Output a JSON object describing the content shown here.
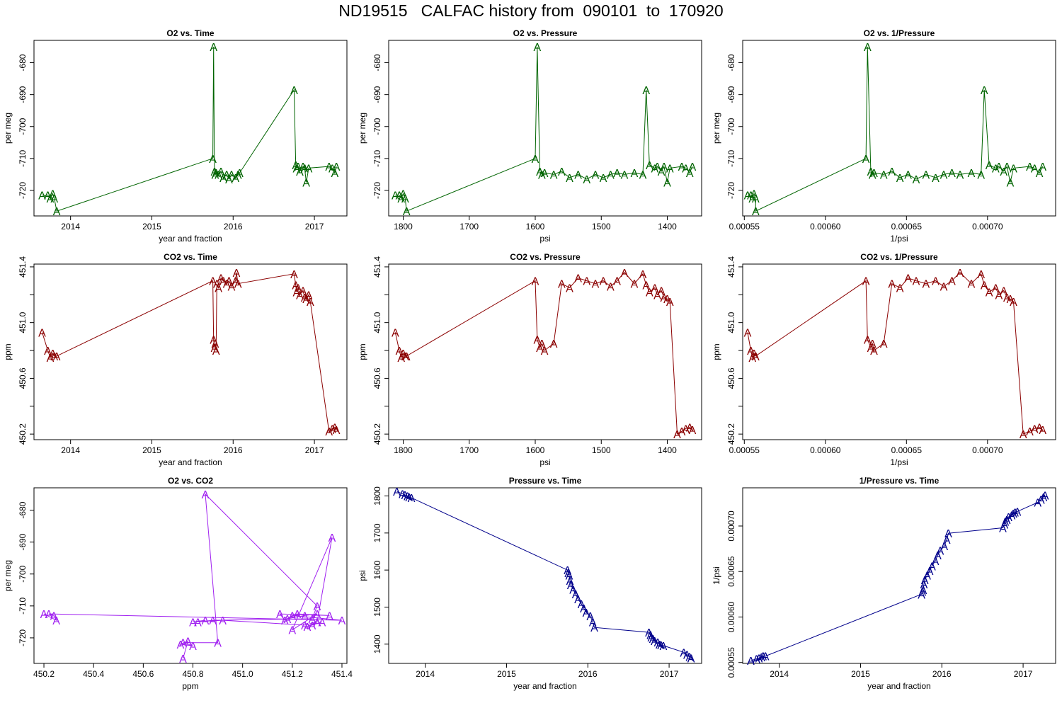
{
  "page": {
    "title": "ND19515   CALFAC history from  090101  to  170920"
  },
  "colors": {
    "o2": "#006400",
    "co2": "#8b0000",
    "o2co2": "#a020f0",
    "pressure": "#00008b"
  },
  "marker": "A",
  "chart_data": [
    {
      "type": "line",
      "title": "O2 vs. Time",
      "xlabel": "year and fraction",
      "ylabel": "per meg",
      "xlim": [
        2013.55,
        2017.4
      ],
      "ylim": [
        -728,
        -673
      ],
      "xreverse": false,
      "color_key": "o2",
      "xticks": [
        2014,
        2015,
        2016,
        2017
      ],
      "xticklabels": [
        "2014",
        "2015",
        "2016",
        "2017"
      ],
      "yticks": [
        -680,
        -690,
        -700,
        -710,
        -720
      ],
      "yticklabels": [
        "-680",
        "-690",
        "-700",
        "-710",
        "-720"
      ],
      "x": [
        2013.65,
        2013.72,
        2013.75,
        2013.78,
        2013.8,
        2013.83,
        2015.75,
        2015.76,
        2015.77,
        2015.78,
        2015.79,
        2015.82,
        2015.85,
        2015.88,
        2015.92,
        2015.95,
        2015.98,
        2016.03,
        2016.06,
        2016.08,
        2016.75,
        2016.77,
        2016.78,
        2016.8,
        2016.82,
        2016.86,
        2016.88,
        2016.9,
        2016.93,
        2017.18,
        2017.22,
        2017.25,
        2017.27
      ],
      "y": [
        -721.5,
        -721.5,
        -722.5,
        -721,
        -722.5,
        -726.5,
        -710,
        -675,
        -714,
        -715,
        -714.5,
        -715,
        -714,
        -716,
        -715,
        -716.5,
        -715,
        -716,
        -715,
        -714.5,
        -688.5,
        -712,
        -713,
        -712.5,
        -714,
        -712.5,
        -713,
        -717.5,
        -713,
        -712.5,
        -713,
        -714.5,
        -712.5
      ]
    },
    {
      "type": "line",
      "title": "O2 vs. Pressure",
      "xlabel": "psi",
      "ylabel": "per meg",
      "xlim": [
        1822,
        1348
      ],
      "ylim": [
        -728,
        -673
      ],
      "xreverse": true,
      "color_key": "o2",
      "xticks": [
        1800,
        1700,
        1600,
        1500,
        1400
      ],
      "xticklabels": [
        "1800",
        "1700",
        "1600",
        "1500",
        "1400"
      ],
      "yticks": [
        -680,
        -690,
        -700,
        -710,
        -720
      ],
      "yticklabels": [
        "-680",
        "-690",
        "-700",
        "-710",
        "-720"
      ],
      "x": [
        1812,
        1806,
        1803,
        1800,
        1797,
        1795,
        1600,
        1597,
        1593,
        1590,
        1586,
        1572,
        1560,
        1548,
        1535,
        1522,
        1509,
        1497,
        1486,
        1476,
        1465,
        1450,
        1437,
        1432,
        1427,
        1419,
        1415,
        1409,
        1405,
        1400,
        1396,
        1378,
        1372,
        1366,
        1362
      ],
      "y": [
        -721.5,
        -721.5,
        -722.5,
        -721,
        -722.5,
        -726.5,
        -710,
        -675,
        -714,
        -715,
        -714.5,
        -715,
        -714,
        -716,
        -715,
        -716.5,
        -715,
        -716,
        -715,
        -714.5,
        -715,
        -714.5,
        -715,
        -688.5,
        -712,
        -713,
        -712.5,
        -714,
        -712.5,
        -717.5,
        -713,
        -712.5,
        -713,
        -714.5,
        -712.5
      ]
    },
    {
      "type": "line",
      "title": "O2 vs. 1/Pressure",
      "xlabel": "1/psi",
      "ylabel": "per meg",
      "xlim": [
        0.000549,
        0.000742
      ],
      "ylim": [
        -728,
        -673
      ],
      "xreverse": false,
      "color_key": "o2",
      "xticks": [
        0.00055,
        0.0006,
        0.00065,
        0.0007
      ],
      "xticklabels": [
        "0.00055",
        "0.00060",
        "0.00065",
        "0.00070"
      ],
      "yticks": [
        -680,
        -690,
        -700,
        -710,
        -720
      ],
      "yticklabels": [
        "-680",
        "-690",
        "-700",
        "-710",
        "-720"
      ],
      "x": [
        0.000552,
        0.000554,
        0.000555,
        0.000556,
        0.000557,
        0.000557,
        0.000625,
        0.000626,
        0.000628,
        0.000629,
        0.00063,
        0.000636,
        0.000641,
        0.000646,
        0.000651,
        0.000656,
        0.000662,
        0.000668,
        0.000673,
        0.000678,
        0.000683,
        0.00069,
        0.000696,
        0.000698,
        0.000701,
        0.000705,
        0.000707,
        0.00071,
        0.000712,
        0.000714,
        0.000716,
        0.000726,
        0.000729,
        0.000732,
        0.000734
      ],
      "y": [
        -721.5,
        -721.5,
        -722.5,
        -721,
        -722.5,
        -726.5,
        -710,
        -675,
        -714,
        -715,
        -714.5,
        -715,
        -714,
        -716,
        -715,
        -716.5,
        -715,
        -716,
        -715,
        -714.5,
        -715,
        -714.5,
        -715,
        -688.5,
        -712,
        -713,
        -712.5,
        -714,
        -712.5,
        -717.5,
        -713,
        -712.5,
        -713,
        -714.5,
        -712.5
      ]
    },
    {
      "type": "line",
      "title": "CO2 vs. Time",
      "xlabel": "year and fraction",
      "ylabel": "ppm",
      "xlim": [
        2013.55,
        2017.4
      ],
      "ylim": [
        450.16,
        451.42
      ],
      "xreverse": false,
      "color_key": "co2",
      "xticks": [
        2014,
        2015,
        2016,
        2017
      ],
      "xticklabels": [
        "2014",
        "2015",
        "2016",
        "2017"
      ],
      "yticks": [
        450.2,
        450.4,
        450.6,
        450.8,
        451.0,
        451.2,
        451.4
      ],
      "yticklabels": [
        "450.2",
        "",
        "450.6",
        "",
        "451.0",
        "",
        "451.4"
      ],
      "x": [
        2013.65,
        2013.72,
        2013.75,
        2013.78,
        2013.8,
        2013.83,
        2015.75,
        2015.76,
        2015.77,
        2015.78,
        2015.79,
        2015.8,
        2015.82,
        2015.85,
        2015.88,
        2015.92,
        2015.95,
        2015.98,
        2016.03,
        2016.04,
        2016.06,
        2016.75,
        2016.77,
        2016.78,
        2016.8,
        2016.82,
        2016.86,
        2016.88,
        2016.9,
        2016.93,
        2016.95,
        2017.18,
        2017.22,
        2017.25,
        2017.27
      ],
      "y": [
        450.93,
        450.8,
        450.75,
        450.78,
        450.76,
        450.76,
        451.3,
        450.88,
        450.82,
        450.85,
        450.8,
        451.28,
        451.25,
        451.32,
        451.3,
        451.28,
        451.3,
        451.26,
        451.3,
        451.36,
        451.28,
        451.35,
        451.27,
        451.22,
        451.25,
        451.2,
        451.23,
        451.18,
        451.17,
        451.2,
        451.15,
        450.22,
        450.24,
        450.25,
        450.23
      ]
    },
    {
      "type": "line",
      "title": "CO2 vs. Pressure",
      "xlabel": "psi",
      "ylabel": "ppm",
      "xlim": [
        1822,
        1348
      ],
      "ylim": [
        450.16,
        451.42
      ],
      "xreverse": true,
      "color_key": "co2",
      "xticks": [
        1800,
        1700,
        1600,
        1500,
        1400
      ],
      "xticklabels": [
        "1800",
        "1700",
        "1600",
        "1500",
        "1400"
      ],
      "yticks": [
        450.2,
        450.4,
        450.6,
        450.8,
        451.0,
        451.2,
        451.4
      ],
      "yticklabels": [
        "450.2",
        "",
        "450.6",
        "",
        "451.0",
        "",
        "451.4"
      ],
      "x": [
        1812,
        1806,
        1803,
        1800,
        1797,
        1795,
        1600,
        1597,
        1593,
        1590,
        1586,
        1572,
        1560,
        1548,
        1535,
        1522,
        1509,
        1497,
        1486,
        1476,
        1465,
        1450,
        1437,
        1432,
        1427,
        1419,
        1415,
        1409,
        1405,
        1400,
        1396,
        1385,
        1378,
        1372,
        1366,
        1362
      ],
      "y": [
        450.93,
        450.8,
        450.75,
        450.78,
        450.76,
        450.76,
        451.3,
        450.88,
        450.82,
        450.85,
        450.8,
        450.85,
        451.28,
        451.25,
        451.32,
        451.3,
        451.28,
        451.3,
        451.26,
        451.3,
        451.36,
        451.28,
        451.35,
        451.27,
        451.22,
        451.25,
        451.2,
        451.23,
        451.18,
        451.17,
        451.15,
        450.2,
        450.22,
        450.24,
        450.25,
        450.23
      ]
    },
    {
      "type": "line",
      "title": "CO2 vs. 1/Pressure",
      "xlabel": "1/psi",
      "ylabel": "ppm",
      "xlim": [
        0.000549,
        0.000742
      ],
      "ylim": [
        450.16,
        451.42
      ],
      "xreverse": false,
      "color_key": "co2",
      "xticks": [
        0.00055,
        0.0006,
        0.00065,
        0.0007
      ],
      "xticklabels": [
        "0.00055",
        "0.00060",
        "0.00065",
        "0.00070"
      ],
      "yticks": [
        450.2,
        450.4,
        450.6,
        450.8,
        451.0,
        451.2,
        451.4
      ],
      "yticklabels": [
        "450.2",
        "",
        "450.6",
        "",
        "451.0",
        "",
        "451.4"
      ],
      "x": [
        0.000552,
        0.000554,
        0.000555,
        0.000556,
        0.000557,
        0.000557,
        0.000625,
        0.000626,
        0.000628,
        0.000629,
        0.00063,
        0.000636,
        0.000641,
        0.000646,
        0.000651,
        0.000656,
        0.000662,
        0.000668,
        0.000673,
        0.000678,
        0.000683,
        0.00069,
        0.000696,
        0.000698,
        0.000701,
        0.000705,
        0.000707,
        0.00071,
        0.000712,
        0.000714,
        0.000716,
        0.000722,
        0.000726,
        0.000729,
        0.000732,
        0.000734
      ],
      "y": [
        450.93,
        450.8,
        450.75,
        450.78,
        450.76,
        450.76,
        451.3,
        450.88,
        450.82,
        450.85,
        450.8,
        450.85,
        451.28,
        451.25,
        451.32,
        451.3,
        451.28,
        451.3,
        451.26,
        451.3,
        451.36,
        451.28,
        451.35,
        451.27,
        451.22,
        451.25,
        451.2,
        451.23,
        451.18,
        451.17,
        451.15,
        450.2,
        450.22,
        450.24,
        450.25,
        450.23
      ]
    },
    {
      "type": "line",
      "title": "O2 vs. CO2",
      "xlabel": "ppm",
      "ylabel": "per meg",
      "xlim": [
        450.16,
        451.42
      ],
      "ylim": [
        -728,
        -673
      ],
      "xreverse": false,
      "color_key": "o2co2",
      "xticks": [
        450.2,
        450.4,
        450.6,
        450.8,
        451.0,
        451.2,
        451.4
      ],
      "xticklabels": [
        "450.2",
        "450.4",
        "450.6",
        "450.8",
        "451.0",
        "451.2",
        "451.4"
      ],
      "yticks": [
        -680,
        -690,
        -700,
        -710,
        -720
      ],
      "yticklabels": [
        "-680",
        "-690",
        "-700",
        "-710",
        "-720"
      ],
      "x": [
        450.76,
        450.78,
        450.75,
        450.8,
        450.76,
        450.9,
        450.85,
        451.3,
        451.28,
        450.88,
        450.82,
        450.85,
        450.8,
        450.92,
        451.25,
        451.3,
        451.26,
        451.32,
        451.28,
        451.3,
        451.36,
        451.2,
        451.3,
        451.25,
        451.18,
        451.22,
        451.35,
        451.15,
        451.17,
        451.2,
        451.4,
        450.22,
        450.24,
        450.25,
        450.2
      ],
      "y": [
        -726.5,
        -721,
        -722,
        -722.5,
        -721.5,
        -721.5,
        -675,
        -710,
        -714,
        -714.5,
        -715,
        -714.5,
        -715,
        -714.5,
        -716,
        -715,
        -716.5,
        -715,
        -716,
        -715,
        -688.5,
        -717.5,
        -712.5,
        -713,
        -714,
        -712.5,
        -713,
        -712.5,
        -714.5,
        -713,
        -714.5,
        -712.5,
        -713,
        -714.5,
        -712.5
      ]
    },
    {
      "type": "line",
      "title": "Pressure vs. Time",
      "xlabel": "year and fraction",
      "ylabel": "psi",
      "xlim": [
        2013.55,
        2017.4
      ],
      "ylim": [
        1348,
        1822
      ],
      "xreverse": false,
      "color_key": "pressure",
      "xticks": [
        2014,
        2015,
        2016,
        2017
      ],
      "xticklabels": [
        "2014",
        "2015",
        "2016",
        "2017"
      ],
      "yticks": [
        1400,
        1500,
        1600,
        1700,
        1800
      ],
      "yticklabels": [
        "1400",
        "1500",
        "1600",
        "1700",
        "1800"
      ],
      "x": [
        2013.65,
        2013.72,
        2013.75,
        2013.78,
        2013.8,
        2013.83,
        2015.75,
        2015.76,
        2015.77,
        2015.78,
        2015.79,
        2015.82,
        2015.85,
        2015.88,
        2015.92,
        2015.95,
        2015.98,
        2016.03,
        2016.06,
        2016.08,
        2016.75,
        2016.77,
        2016.78,
        2016.8,
        2016.82,
        2016.86,
        2016.88,
        2016.9,
        2016.93,
        2017.18,
        2017.22,
        2017.25,
        2017.27
      ],
      "y": [
        1812,
        1806,
        1803,
        1800,
        1797,
        1795,
        1600,
        1593,
        1586,
        1572,
        1560,
        1548,
        1535,
        1522,
        1509,
        1497,
        1486,
        1476,
        1460,
        1445,
        1432,
        1425,
        1419,
        1415,
        1409,
        1405,
        1400,
        1398,
        1396,
        1378,
        1372,
        1366,
        1362
      ]
    },
    {
      "type": "line",
      "title": "1/Pressure vs. Time",
      "xlabel": "year and fraction",
      "ylabel": "1/psi",
      "xlim": [
        2013.55,
        2017.4
      ],
      "ylim": [
        0.000549,
        0.000742
      ],
      "xreverse": false,
      "color_key": "pressure",
      "xticks": [
        2014,
        2015,
        2016,
        2017
      ],
      "xticklabels": [
        "2014",
        "2015",
        "2016",
        "2017"
      ],
      "yticks": [
        0.00055,
        0.0006,
        0.00065,
        0.0007
      ],
      "yticklabels": [
        "0.00055",
        "0.00060",
        "0.00065",
        "0.00070"
      ],
      "x": [
        2013.65,
        2013.72,
        2013.75,
        2013.78,
        2013.8,
        2013.83,
        2015.75,
        2015.76,
        2015.77,
        2015.78,
        2015.79,
        2015.82,
        2015.85,
        2015.88,
        2015.92,
        2015.95,
        2015.98,
        2016.03,
        2016.06,
        2016.08,
        2016.75,
        2016.77,
        2016.78,
        2016.8,
        2016.82,
        2016.86,
        2016.88,
        2016.9,
        2016.93,
        2017.18,
        2017.22,
        2017.25,
        2017.27
      ],
      "y": [
        0.000552,
        0.000554,
        0.000555,
        0.000556,
        0.000557,
        0.000557,
        0.000625,
        0.000628,
        0.00063,
        0.000636,
        0.000641,
        0.000646,
        0.000651,
        0.000656,
        0.000662,
        0.000668,
        0.000673,
        0.000678,
        0.000685,
        0.000692,
        0.000698,
        0.000702,
        0.000705,
        0.000707,
        0.00071,
        0.000712,
        0.000714,
        0.000715,
        0.000716,
        0.000726,
        0.000729,
        0.000732,
        0.000734
      ]
    }
  ]
}
